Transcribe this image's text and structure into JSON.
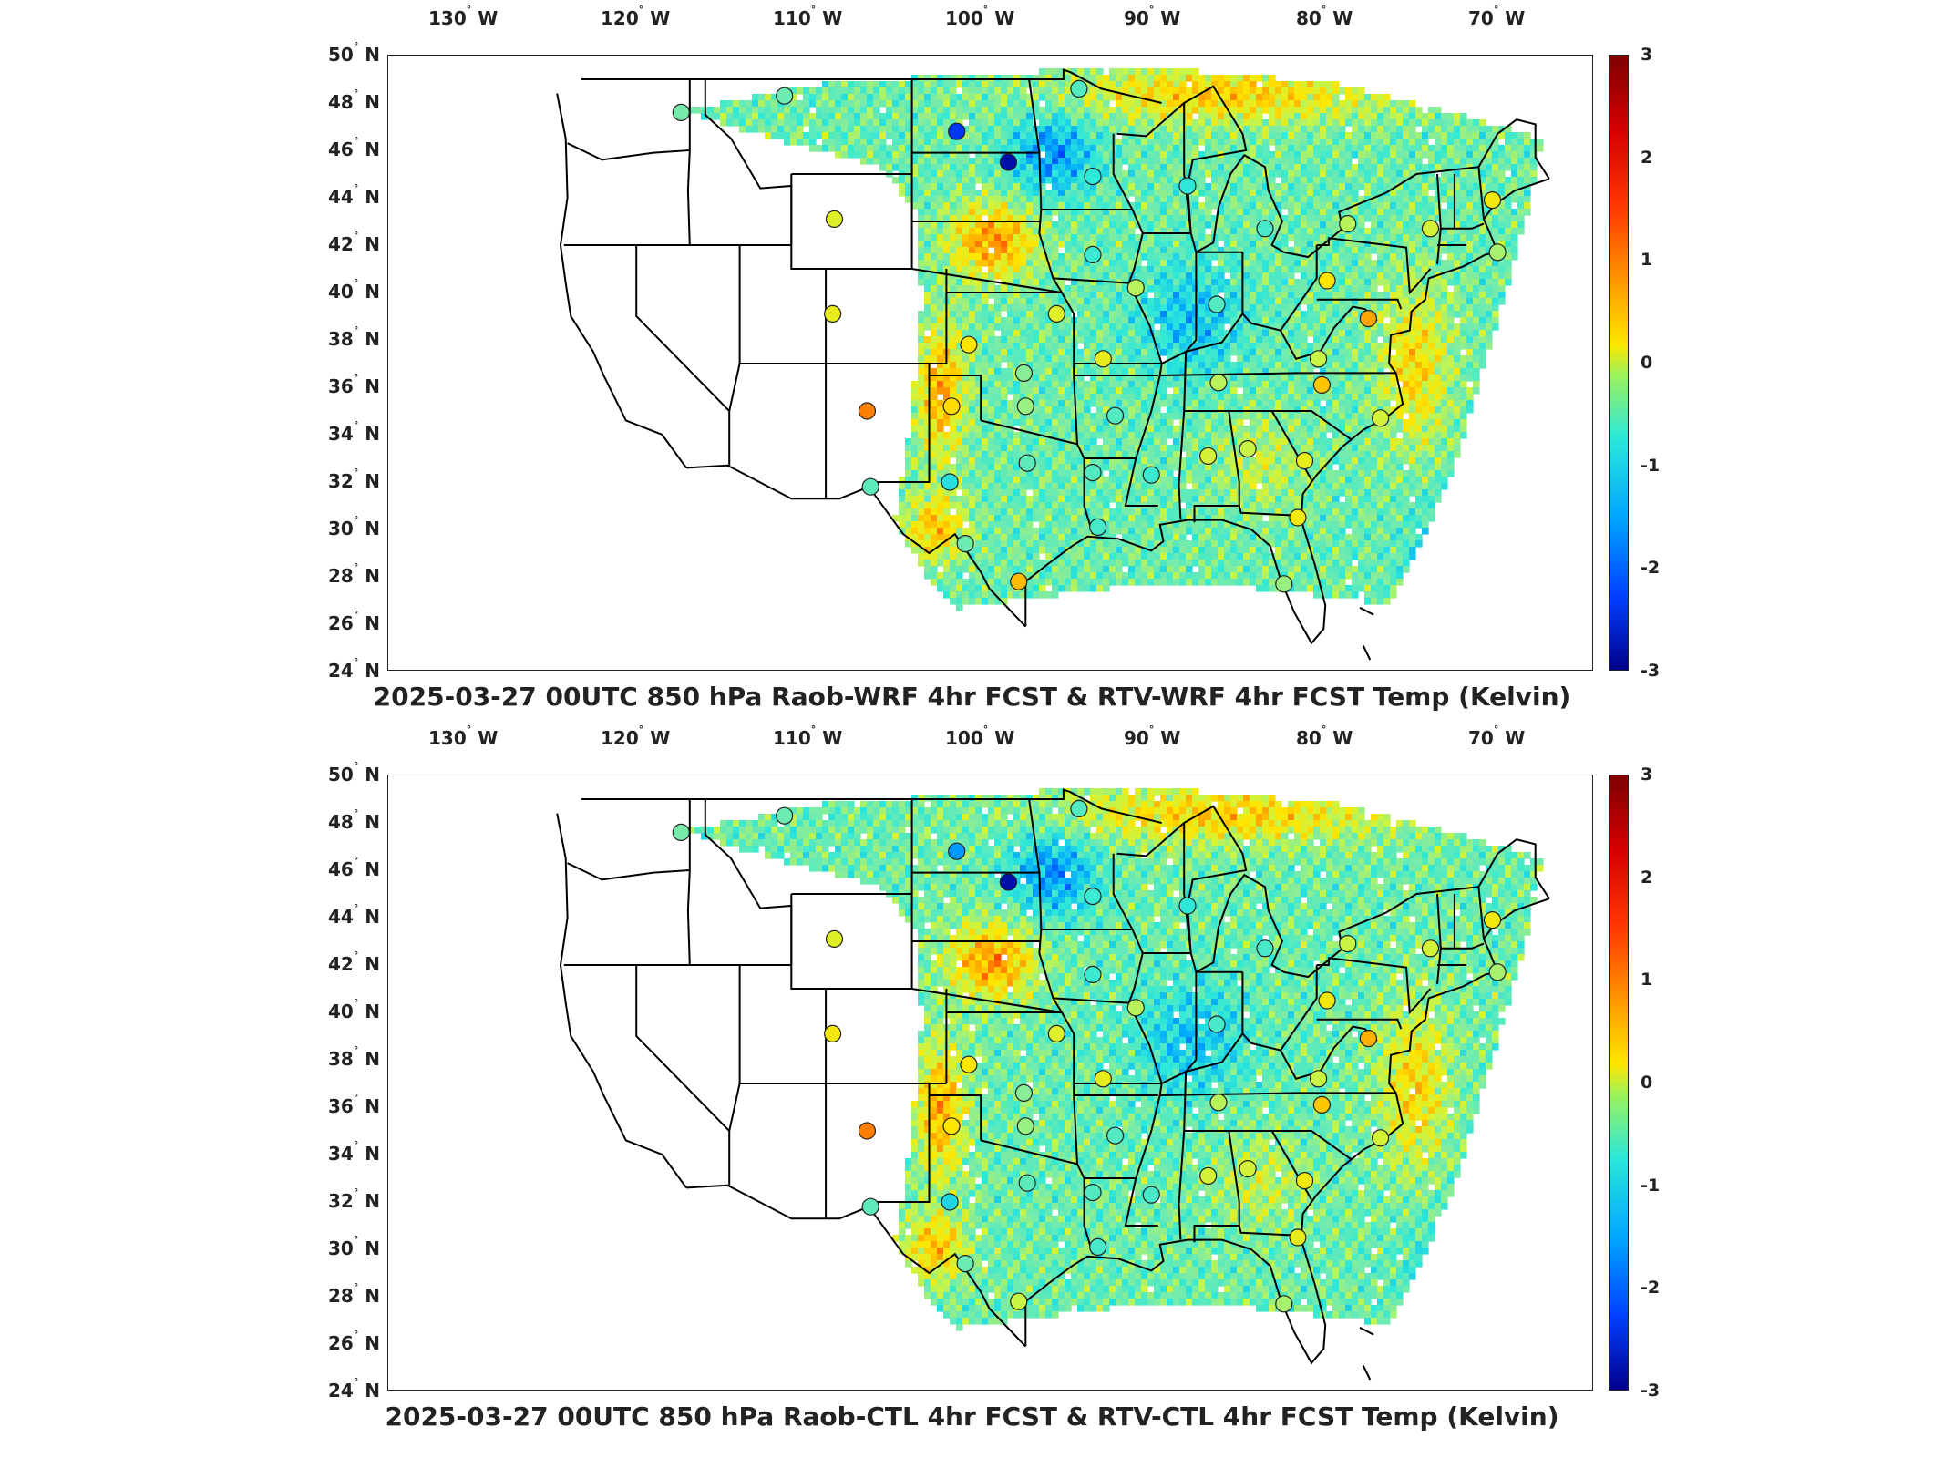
{
  "panels": [
    {
      "title": "2025-03-27 00UTC 850 hPa Raob-WRF 4hr FCST & RTV-WRF 4hr FCST Temp (Kelvin)",
      "lon_ticks": [
        "130",
        "120",
        "110",
        "100",
        "90",
        "80",
        "70"
      ],
      "lat_ticks": [
        "50",
        "48",
        "46",
        "44",
        "42",
        "40",
        "38",
        "36",
        "34",
        "32",
        "30",
        "28",
        "26",
        "24"
      ],
      "lon_suffix": "W",
      "lat_suffix": "N",
      "colorbar": {
        "ticks": [
          "3",
          "2",
          "1",
          "0",
          "-1",
          "-2",
          "-3"
        ],
        "min": -3,
        "max": 3
      },
      "raob_stations": [
        {
          "lon": -117.4,
          "lat": 47.6,
          "value": -0.2
        },
        {
          "lon": -111.4,
          "lat": 48.3,
          "value": -0.3
        },
        {
          "lon": -101.4,
          "lat": 46.8,
          "value": -2.3
        },
        {
          "lon": -98.4,
          "lat": 45.5,
          "value": -2.8
        },
        {
          "lon": -93.5,
          "lat": 44.9,
          "value": -0.8
        },
        {
          "lon": -108.5,
          "lat": 43.1,
          "value": 0.5
        },
        {
          "lon": -108.6,
          "lat": 39.1,
          "value": 0.6
        },
        {
          "lon": -106.6,
          "lat": 35.0,
          "value": 1.7
        },
        {
          "lon": -100.7,
          "lat": 37.8,
          "value": 0.8
        },
        {
          "lon": -101.7,
          "lat": 35.2,
          "value": 0.9
        },
        {
          "lon": -97.5,
          "lat": 36.6,
          "value": -0.1
        },
        {
          "lon": -97.4,
          "lat": 35.2,
          "value": 0.0
        },
        {
          "lon": -95.6,
          "lat": 39.1,
          "value": 0.5
        },
        {
          "lon": -92.9,
          "lat": 37.2,
          "value": 0.6
        },
        {
          "lon": -91.0,
          "lat": 40.2,
          "value": 0.2
        },
        {
          "lon": -93.5,
          "lat": 41.6,
          "value": -0.7
        },
        {
          "lon": -88.0,
          "lat": 44.5,
          "value": -0.8
        },
        {
          "lon": -83.5,
          "lat": 42.7,
          "value": -0.6
        },
        {
          "lon": -86.3,
          "lat": 39.5,
          "value": -0.5
        },
        {
          "lon": -79.9,
          "lat": 40.5,
          "value": 0.8
        },
        {
          "lon": -73.9,
          "lat": 42.7,
          "value": 0.4
        },
        {
          "lon": -78.7,
          "lat": 42.9,
          "value": 0.2
        },
        {
          "lon": -77.5,
          "lat": 38.9,
          "value": 1.4
        },
        {
          "lon": -80.4,
          "lat": 37.2,
          "value": 0.3
        },
        {
          "lon": -86.2,
          "lat": 36.2,
          "value": 0.2
        },
        {
          "lon": -80.2,
          "lat": 36.1,
          "value": 1.1
        },
        {
          "lon": -76.8,
          "lat": 34.7,
          "value": 0.4
        },
        {
          "lon": -92.2,
          "lat": 34.8,
          "value": -0.5
        },
        {
          "lon": -97.3,
          "lat": 32.8,
          "value": -0.4
        },
        {
          "lon": -101.8,
          "lat": 32.0,
          "value": -0.9
        },
        {
          "lon": -106.4,
          "lat": 31.8,
          "value": -0.4
        },
        {
          "lon": -93.5,
          "lat": 32.4,
          "value": -0.5
        },
        {
          "lon": -90.1,
          "lat": 32.3,
          "value": -0.7
        },
        {
          "lon": -86.8,
          "lat": 33.1,
          "value": 0.4
        },
        {
          "lon": -84.5,
          "lat": 33.4,
          "value": 0.3
        },
        {
          "lon": -81.2,
          "lat": 32.9,
          "value": 0.6
        },
        {
          "lon": -81.6,
          "lat": 30.5,
          "value": 0.7
        },
        {
          "lon": -93.2,
          "lat": 30.1,
          "value": -0.6
        },
        {
          "lon": -97.8,
          "lat": 27.8,
          "value": 1.2
        },
        {
          "lon": -100.9,
          "lat": 29.4,
          "value": -0.3
        },
        {
          "lon": -82.4,
          "lat": 27.7,
          "value": 0.0
        },
        {
          "lon": -70.3,
          "lat": 43.9,
          "value": 0.7
        },
        {
          "lon": -70.0,
          "lat": 41.7,
          "value": 0.1
        },
        {
          "lon": -94.3,
          "lat": 48.6,
          "value": -0.5
        }
      ]
    },
    {
      "title": "2025-03-27 00UTC 850 hPa Raob-CTL 4hr FCST & RTV-CTL 4hr FCST Temp (Kelvin)",
      "lon_ticks": [
        "130",
        "120",
        "110",
        "100",
        "90",
        "80",
        "70"
      ],
      "lat_ticks": [
        "50",
        "48",
        "46",
        "44",
        "42",
        "40",
        "38",
        "36",
        "34",
        "32",
        "30",
        "28",
        "26",
        "24"
      ],
      "lon_suffix": "W",
      "lat_suffix": "N",
      "colorbar": {
        "ticks": [
          "3",
          "2",
          "1",
          "0",
          "-1",
          "-2",
          "-3"
        ],
        "min": -3,
        "max": 3
      },
      "raob_stations": [
        {
          "lon": -117.4,
          "lat": 47.6,
          "value": -0.2
        },
        {
          "lon": -111.4,
          "lat": 48.3,
          "value": -0.3
        },
        {
          "lon": -101.4,
          "lat": 46.8,
          "value": -1.6
        },
        {
          "lon": -98.4,
          "lat": 45.5,
          "value": -2.8
        },
        {
          "lon": -93.5,
          "lat": 44.9,
          "value": -0.7
        },
        {
          "lon": -108.5,
          "lat": 43.1,
          "value": 0.5
        },
        {
          "lon": -108.6,
          "lat": 39.1,
          "value": 0.7
        },
        {
          "lon": -106.6,
          "lat": 35.0,
          "value": 1.7
        },
        {
          "lon": -100.7,
          "lat": 37.8,
          "value": 0.8
        },
        {
          "lon": -101.7,
          "lat": 35.2,
          "value": 0.8
        },
        {
          "lon": -97.5,
          "lat": 36.6,
          "value": -0.1
        },
        {
          "lon": -97.4,
          "lat": 35.2,
          "value": 0.0
        },
        {
          "lon": -95.6,
          "lat": 39.1,
          "value": 0.5
        },
        {
          "lon": -92.9,
          "lat": 37.2,
          "value": 0.6
        },
        {
          "lon": -91.0,
          "lat": 40.2,
          "value": 0.2
        },
        {
          "lon": -93.5,
          "lat": 41.6,
          "value": -0.7
        },
        {
          "lon": -88.0,
          "lat": 44.5,
          "value": -0.8
        },
        {
          "lon": -83.5,
          "lat": 42.7,
          "value": -0.6
        },
        {
          "lon": -86.3,
          "lat": 39.5,
          "value": -0.6
        },
        {
          "lon": -79.9,
          "lat": 40.5,
          "value": 0.7
        },
        {
          "lon": -73.9,
          "lat": 42.7,
          "value": 0.4
        },
        {
          "lon": -78.7,
          "lat": 42.9,
          "value": 0.3
        },
        {
          "lon": -77.5,
          "lat": 38.9,
          "value": 1.3
        },
        {
          "lon": -80.4,
          "lat": 37.2,
          "value": 0.3
        },
        {
          "lon": -86.2,
          "lat": 36.2,
          "value": 0.2
        },
        {
          "lon": -80.2,
          "lat": 36.1,
          "value": 1.1
        },
        {
          "lon": -76.8,
          "lat": 34.7,
          "value": 0.4
        },
        {
          "lon": -92.2,
          "lat": 34.8,
          "value": -0.5
        },
        {
          "lon": -97.3,
          "lat": 32.8,
          "value": -0.4
        },
        {
          "lon": -101.8,
          "lat": 32.0,
          "value": -1.0
        },
        {
          "lon": -106.4,
          "lat": 31.8,
          "value": -0.4
        },
        {
          "lon": -93.5,
          "lat": 32.4,
          "value": -0.5
        },
        {
          "lon": -90.1,
          "lat": 32.3,
          "value": -0.6
        },
        {
          "lon": -86.8,
          "lat": 33.1,
          "value": 0.4
        },
        {
          "lon": -84.5,
          "lat": 33.4,
          "value": 0.4
        },
        {
          "lon": -81.2,
          "lat": 32.9,
          "value": 0.7
        },
        {
          "lon": -81.6,
          "lat": 30.5,
          "value": 0.6
        },
        {
          "lon": -93.2,
          "lat": 30.1,
          "value": -0.6
        },
        {
          "lon": -97.8,
          "lat": 27.8,
          "value": 0.3
        },
        {
          "lon": -100.9,
          "lat": 29.4,
          "value": -0.3
        },
        {
          "lon": -82.4,
          "lat": 27.7,
          "value": 0.1
        },
        {
          "lon": -70.3,
          "lat": 43.9,
          "value": 0.7
        },
        {
          "lon": -70.0,
          "lat": 41.7,
          "value": 0.1
        },
        {
          "lon": -94.3,
          "lat": 48.6,
          "value": -0.5
        }
      ]
    }
  ],
  "colors": {
    "frame": "#222222",
    "state_border": "#000000",
    "background": "#ffffff"
  }
}
